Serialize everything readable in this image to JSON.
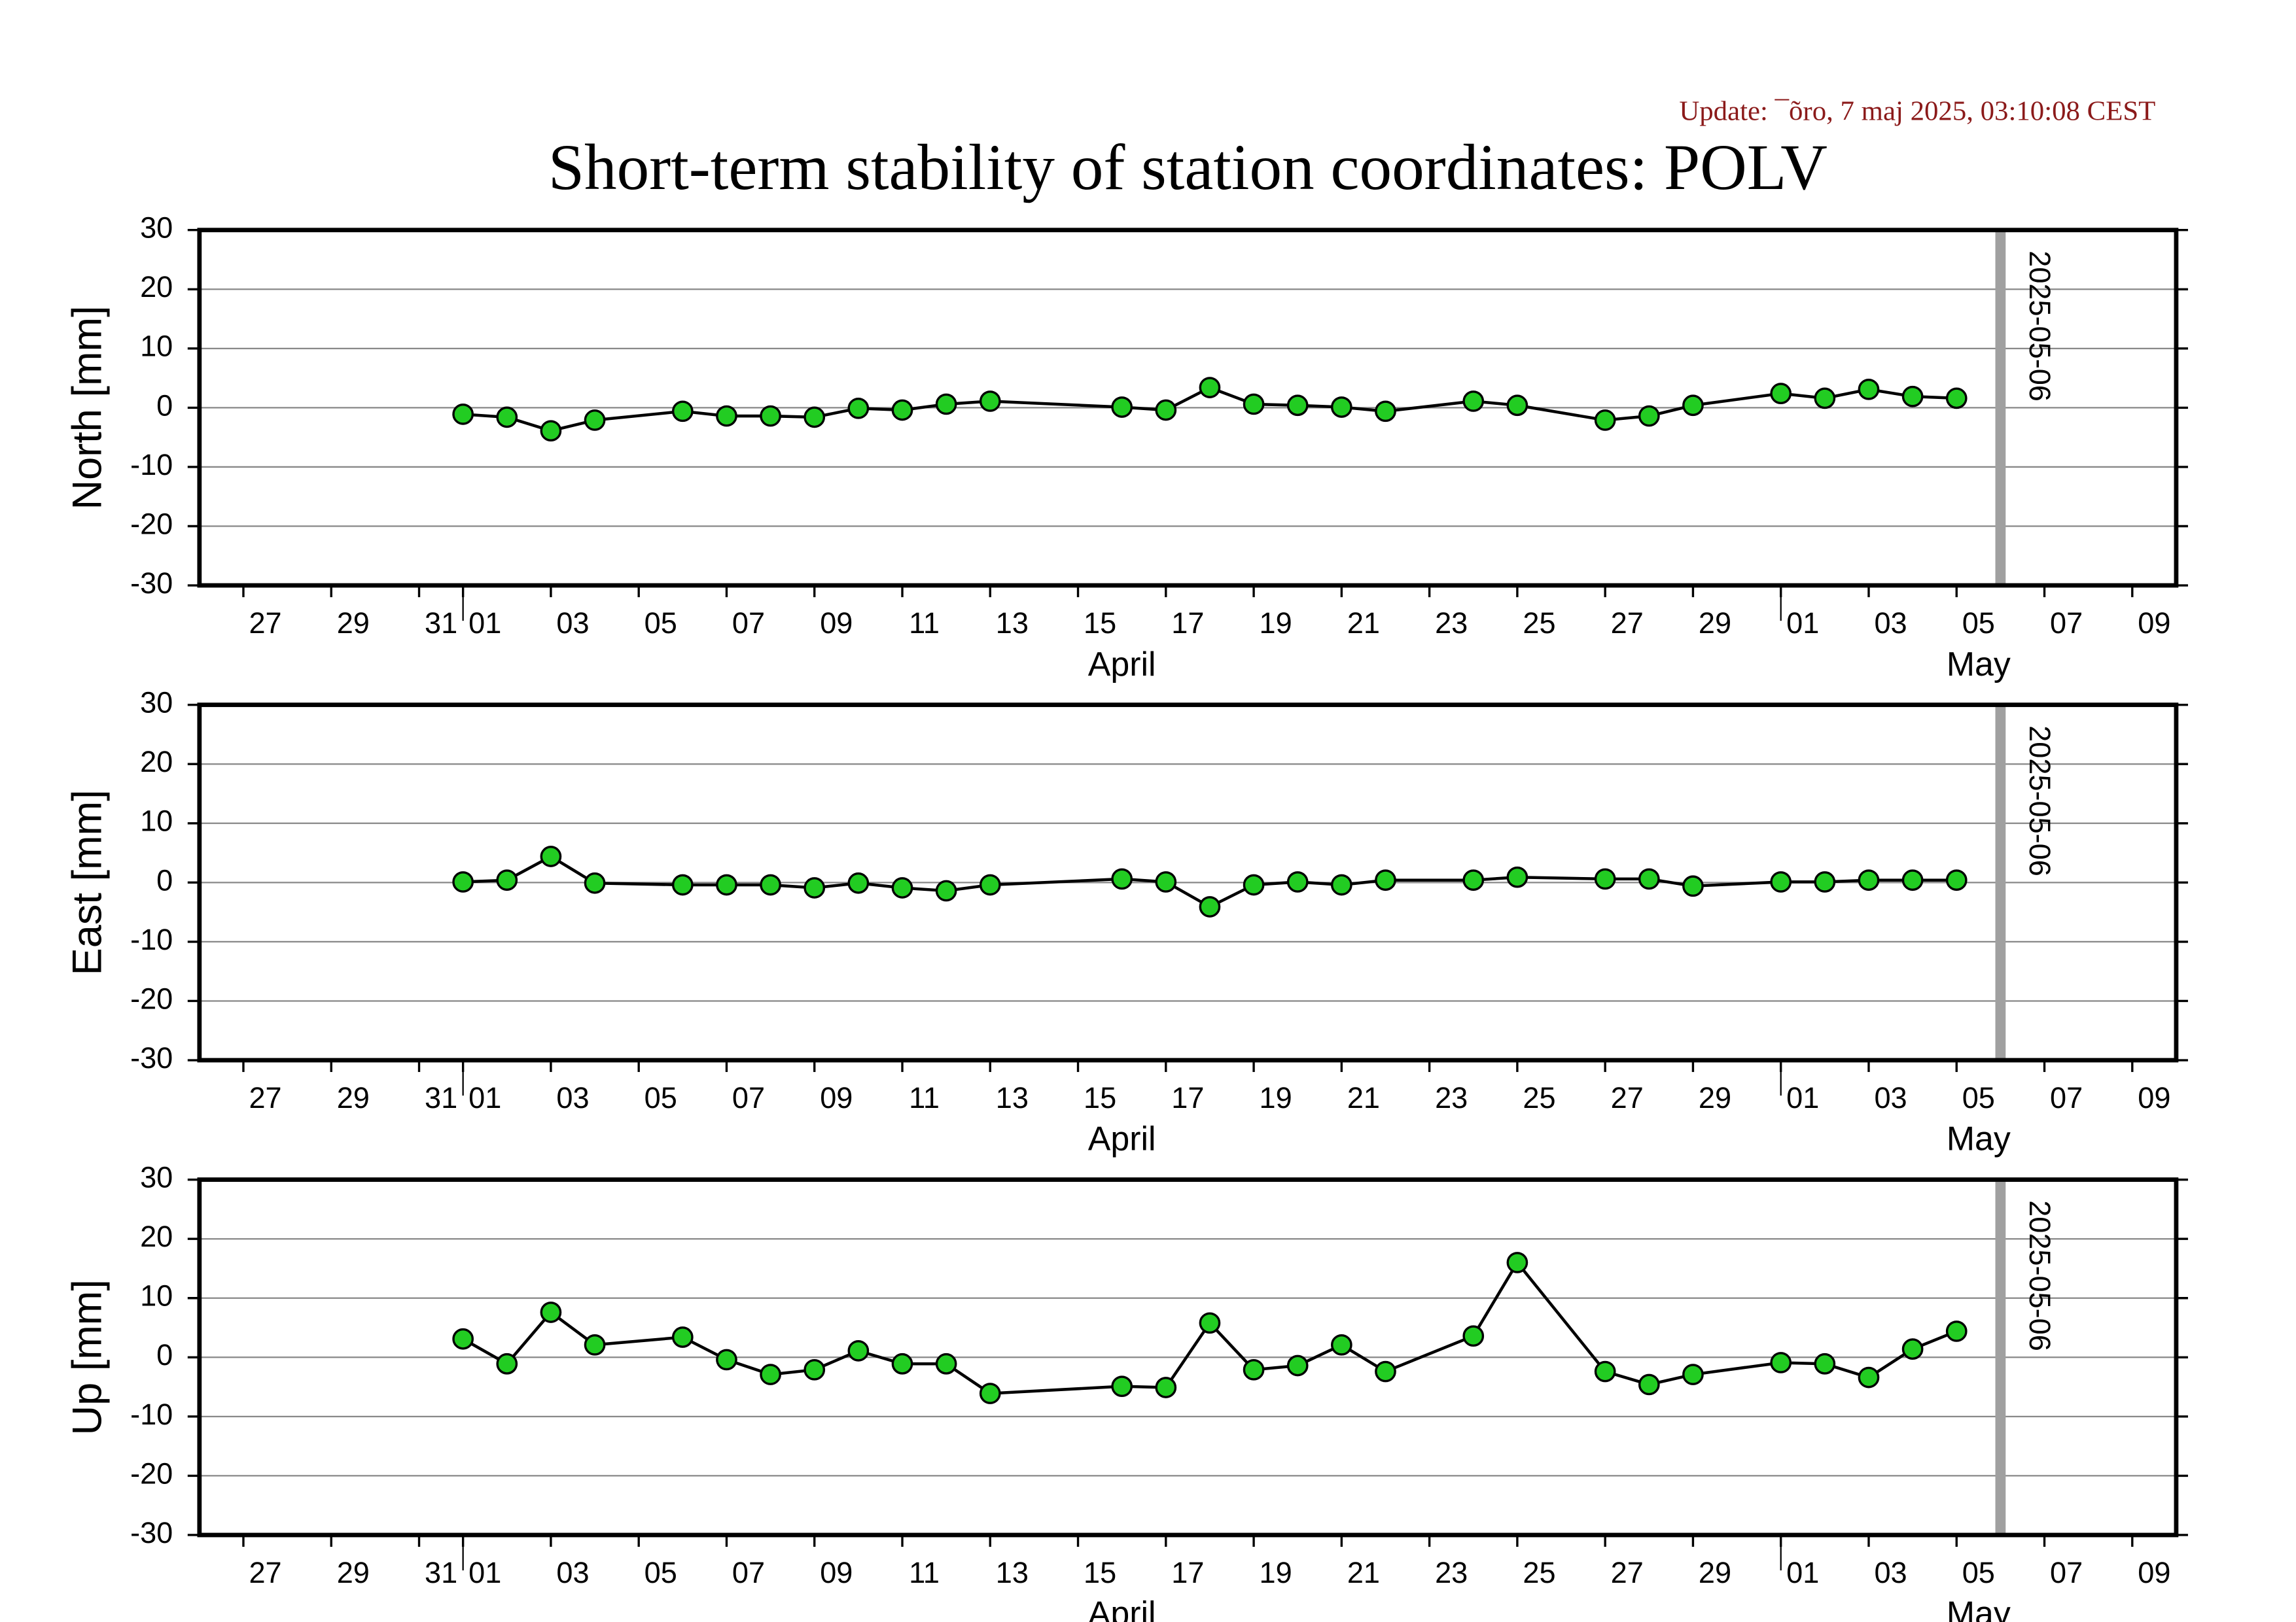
{
  "title": "Short-term stability of station coordinates: POLV",
  "update": "Update: ¯õro, 7 maj 2025, 03:10:08 CEST",
  "chart_data": [
    {
      "type": "line",
      "ylabel": "North [mm]",
      "color": "#22cc22",
      "x": [
        "2025-04-01",
        "2025-04-02",
        "2025-04-03",
        "2025-04-04",
        "2025-04-06",
        "2025-04-07",
        "2025-04-08",
        "2025-04-09",
        "2025-04-10",
        "2025-04-11",
        "2025-04-12",
        "2025-04-13",
        "2025-04-16",
        "2025-04-17",
        "2025-04-18",
        "2025-04-19",
        "2025-04-20",
        "2025-04-21",
        "2025-04-22",
        "2025-04-24",
        "2025-04-25",
        "2025-04-27",
        "2025-04-28",
        "2025-04-29",
        "2025-05-01",
        "2025-05-02",
        "2025-05-03",
        "2025-05-04",
        "2025-05-05"
      ],
      "values": [
        -1.1,
        -1.6,
        -3.9,
        -2.1,
        -0.6,
        -1.4,
        -1.4,
        -1.6,
        -0.1,
        -0.4,
        0.6,
        1.1,
        0.1,
        -0.4,
        3.4,
        0.6,
        0.4,
        0.1,
        -0.6,
        1.1,
        0.4,
        -2.1,
        -1.4,
        0.4,
        2.4,
        1.6,
        3.1,
        1.9,
        1.6
      ],
      "xlim": [
        "2025-03-26",
        "2025-05-10"
      ],
      "xticks": [
        {
          "value": "2025-03-27",
          "label": "27"
        },
        {
          "value": "2025-03-29",
          "label": "29"
        },
        {
          "value": "2025-03-31",
          "label": "31"
        },
        {
          "value": "2025-04-01",
          "label": "01"
        },
        {
          "value": "2025-04-03",
          "label": "03"
        },
        {
          "value": "2025-04-05",
          "label": "05"
        },
        {
          "value": "2025-04-07",
          "label": "07"
        },
        {
          "value": "2025-04-09",
          "label": "09"
        },
        {
          "value": "2025-04-11",
          "label": "11"
        },
        {
          "value": "2025-04-13",
          "label": "13"
        },
        {
          "value": "2025-04-15",
          "label": "15"
        },
        {
          "value": "2025-04-17",
          "label": "17"
        },
        {
          "value": "2025-04-19",
          "label": "19"
        },
        {
          "value": "2025-04-21",
          "label": "21"
        },
        {
          "value": "2025-04-23",
          "label": "23"
        },
        {
          "value": "2025-04-25",
          "label": "25"
        },
        {
          "value": "2025-04-27",
          "label": "27"
        },
        {
          "value": "2025-04-29",
          "label": "29"
        },
        {
          "value": "2025-05-01",
          "label": "01"
        },
        {
          "value": "2025-05-03",
          "label": "03"
        },
        {
          "value": "2025-05-05",
          "label": "05"
        },
        {
          "value": "2025-05-07",
          "label": "07"
        },
        {
          "value": "2025-05-09",
          "label": "09"
        }
      ],
      "months": [
        {
          "value": "2025-04-01",
          "end": "2025-05-01",
          "label": "April"
        },
        {
          "value": "2025-05-01",
          "end": "2025-06-01",
          "label": "May"
        }
      ],
      "ylim": [
        -30,
        30
      ],
      "yticks": [
        -30,
        -20,
        -10,
        0,
        10,
        20,
        30
      ],
      "grid": true,
      "annotations": [
        {
          "x": "2025-05-06",
          "text": "2025-05-06"
        }
      ]
    },
    {
      "type": "line",
      "ylabel": "East [mm]",
      "color": "#22cc22",
      "x": [
        "2025-04-01",
        "2025-04-02",
        "2025-04-03",
        "2025-04-04",
        "2025-04-06",
        "2025-04-07",
        "2025-04-08",
        "2025-04-09",
        "2025-04-10",
        "2025-04-11",
        "2025-04-12",
        "2025-04-13",
        "2025-04-16",
        "2025-04-17",
        "2025-04-18",
        "2025-04-19",
        "2025-04-20",
        "2025-04-21",
        "2025-04-22",
        "2025-04-24",
        "2025-04-25",
        "2025-04-27",
        "2025-04-28",
        "2025-04-29",
        "2025-05-01",
        "2025-05-02",
        "2025-05-03",
        "2025-05-04",
        "2025-05-05"
      ],
      "values": [
        0.1,
        0.4,
        4.4,
        -0.1,
        -0.4,
        -0.4,
        -0.4,
        -0.9,
        -0.1,
        -0.9,
        -1.4,
        -0.4,
        0.6,
        0.1,
        -4.1,
        -0.4,
        0.1,
        -0.4,
        0.4,
        0.4,
        0.9,
        0.6,
        0.6,
        -0.6,
        0.1,
        0.1,
        0.4,
        0.4,
        0.4
      ],
      "xlim": [
        "2025-03-26",
        "2025-05-10"
      ],
      "xticks": [
        {
          "value": "2025-03-27",
          "label": "27"
        },
        {
          "value": "2025-03-29",
          "label": "29"
        },
        {
          "value": "2025-03-31",
          "label": "31"
        },
        {
          "value": "2025-04-01",
          "label": "01"
        },
        {
          "value": "2025-04-03",
          "label": "03"
        },
        {
          "value": "2025-04-05",
          "label": "05"
        },
        {
          "value": "2025-04-07",
          "label": "07"
        },
        {
          "value": "2025-04-09",
          "label": "09"
        },
        {
          "value": "2025-04-11",
          "label": "11"
        },
        {
          "value": "2025-04-13",
          "label": "13"
        },
        {
          "value": "2025-04-15",
          "label": "15"
        },
        {
          "value": "2025-04-17",
          "label": "17"
        },
        {
          "value": "2025-04-19",
          "label": "19"
        },
        {
          "value": "2025-04-21",
          "label": "21"
        },
        {
          "value": "2025-04-23",
          "label": "23"
        },
        {
          "value": "2025-04-25",
          "label": "25"
        },
        {
          "value": "2025-04-27",
          "label": "27"
        },
        {
          "value": "2025-04-29",
          "label": "29"
        },
        {
          "value": "2025-05-01",
          "label": "01"
        },
        {
          "value": "2025-05-03",
          "label": "03"
        },
        {
          "value": "2025-05-05",
          "label": "05"
        },
        {
          "value": "2025-05-07",
          "label": "07"
        },
        {
          "value": "2025-05-09",
          "label": "09"
        }
      ],
      "months": [
        {
          "value": "2025-04-01",
          "end": "2025-05-01",
          "label": "April"
        },
        {
          "value": "2025-05-01",
          "end": "2025-06-01",
          "label": "May"
        }
      ],
      "ylim": [
        -30,
        30
      ],
      "yticks": [
        -30,
        -20,
        -10,
        0,
        10,
        20,
        30
      ],
      "grid": true,
      "annotations": [
        {
          "x": "2025-05-06",
          "text": "2025-05-06"
        }
      ]
    },
    {
      "type": "line",
      "ylabel": "Up [mm]",
      "color": "#22cc22",
      "x": [
        "2025-04-01",
        "2025-04-02",
        "2025-04-03",
        "2025-04-04",
        "2025-04-06",
        "2025-04-07",
        "2025-04-08",
        "2025-04-09",
        "2025-04-10",
        "2025-04-11",
        "2025-04-12",
        "2025-04-13",
        "2025-04-16",
        "2025-04-17",
        "2025-04-18",
        "2025-04-19",
        "2025-04-20",
        "2025-04-21",
        "2025-04-22",
        "2025-04-24",
        "2025-04-25",
        "2025-04-27",
        "2025-04-28",
        "2025-04-29",
        "2025-05-01",
        "2025-05-02",
        "2025-05-03",
        "2025-05-04",
        "2025-05-05"
      ],
      "values": [
        3.1,
        -1.1,
        7.6,
        2.1,
        3.4,
        -0.4,
        -2.9,
        -2.1,
        1.1,
        -1.1,
        -1.1,
        -6.1,
        -4.9,
        -5.1,
        5.8,
        -2.1,
        -1.4,
        2.1,
        -2.4,
        3.6,
        16.0,
        -2.4,
        -4.6,
        -2.9,
        -0.9,
        -1.1,
        -3.4,
        1.4,
        4.4
      ],
      "xlim": [
        "2025-03-26",
        "2025-05-10"
      ],
      "xticks": [
        {
          "value": "2025-03-27",
          "label": "27"
        },
        {
          "value": "2025-03-29",
          "label": "29"
        },
        {
          "value": "2025-03-31",
          "label": "31"
        },
        {
          "value": "2025-04-01",
          "label": "01"
        },
        {
          "value": "2025-04-03",
          "label": "03"
        },
        {
          "value": "2025-04-05",
          "label": "05"
        },
        {
          "value": "2025-04-07",
          "label": "07"
        },
        {
          "value": "2025-04-09",
          "label": "09"
        },
        {
          "value": "2025-04-11",
          "label": "11"
        },
        {
          "value": "2025-04-13",
          "label": "13"
        },
        {
          "value": "2025-04-15",
          "label": "15"
        },
        {
          "value": "2025-04-17",
          "label": "17"
        },
        {
          "value": "2025-04-19",
          "label": "19"
        },
        {
          "value": "2025-04-21",
          "label": "21"
        },
        {
          "value": "2025-04-23",
          "label": "23"
        },
        {
          "value": "2025-04-25",
          "label": "25"
        },
        {
          "value": "2025-04-27",
          "label": "27"
        },
        {
          "value": "2025-04-29",
          "label": "29"
        },
        {
          "value": "2025-05-01",
          "label": "01"
        },
        {
          "value": "2025-05-03",
          "label": "03"
        },
        {
          "value": "2025-05-05",
          "label": "05"
        },
        {
          "value": "2025-05-07",
          "label": "07"
        },
        {
          "value": "2025-05-09",
          "label": "09"
        }
      ],
      "months": [
        {
          "value": "2025-04-01",
          "end": "2025-05-01",
          "label": "April"
        },
        {
          "value": "2025-05-01",
          "end": "2025-06-01",
          "label": "May"
        }
      ],
      "ylim": [
        -30,
        30
      ],
      "yticks": [
        -30,
        -20,
        -10,
        0,
        10,
        20,
        30
      ],
      "grid": true,
      "annotations": [
        {
          "x": "2025-05-06",
          "text": "2025-05-06"
        }
      ]
    }
  ]
}
